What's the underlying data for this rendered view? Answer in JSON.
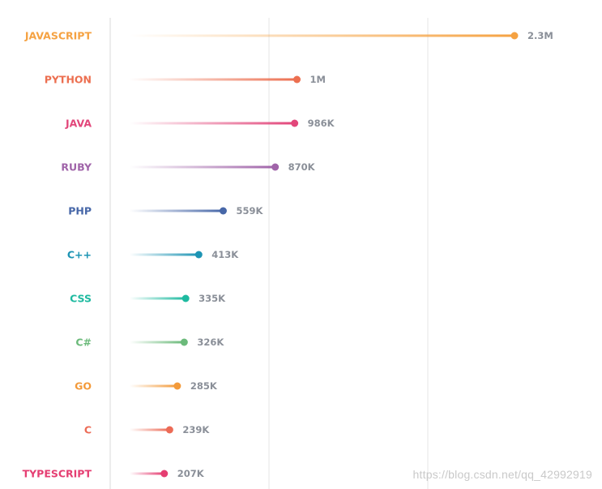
{
  "chart_data": {
    "type": "lollipop",
    "categories": [
      "JAVASCRIPT",
      "PYTHON",
      "JAVA",
      "RUBY",
      "PHP",
      "C++",
      "CSS",
      "C#",
      "GO",
      "C",
      "TYPESCRIPT"
    ],
    "values": [
      2300000,
      1000000,
      986000,
      870000,
      559000,
      413000,
      335000,
      326000,
      285000,
      239000,
      207000
    ],
    "value_labels": [
      "2.3M",
      "1M",
      "986K",
      "870K",
      "559K",
      "413K",
      "335K",
      "326K",
      "285K",
      "239K",
      "207K"
    ],
    "colors": [
      "#f5a242",
      "#ec6f50",
      "#e2467a",
      "#a064a9",
      "#4767a8",
      "#1d94b4",
      "#1ebaa0",
      "#6bba7a",
      "#f39a3a",
      "#ec6b56",
      "#e53e72"
    ],
    "xlim": [
      0,
      2300000
    ],
    "grid": "vertical",
    "title": "",
    "xlabel": "",
    "ylabel": ""
  },
  "watermark": "https://blog.csdn.net/qq_42992919"
}
